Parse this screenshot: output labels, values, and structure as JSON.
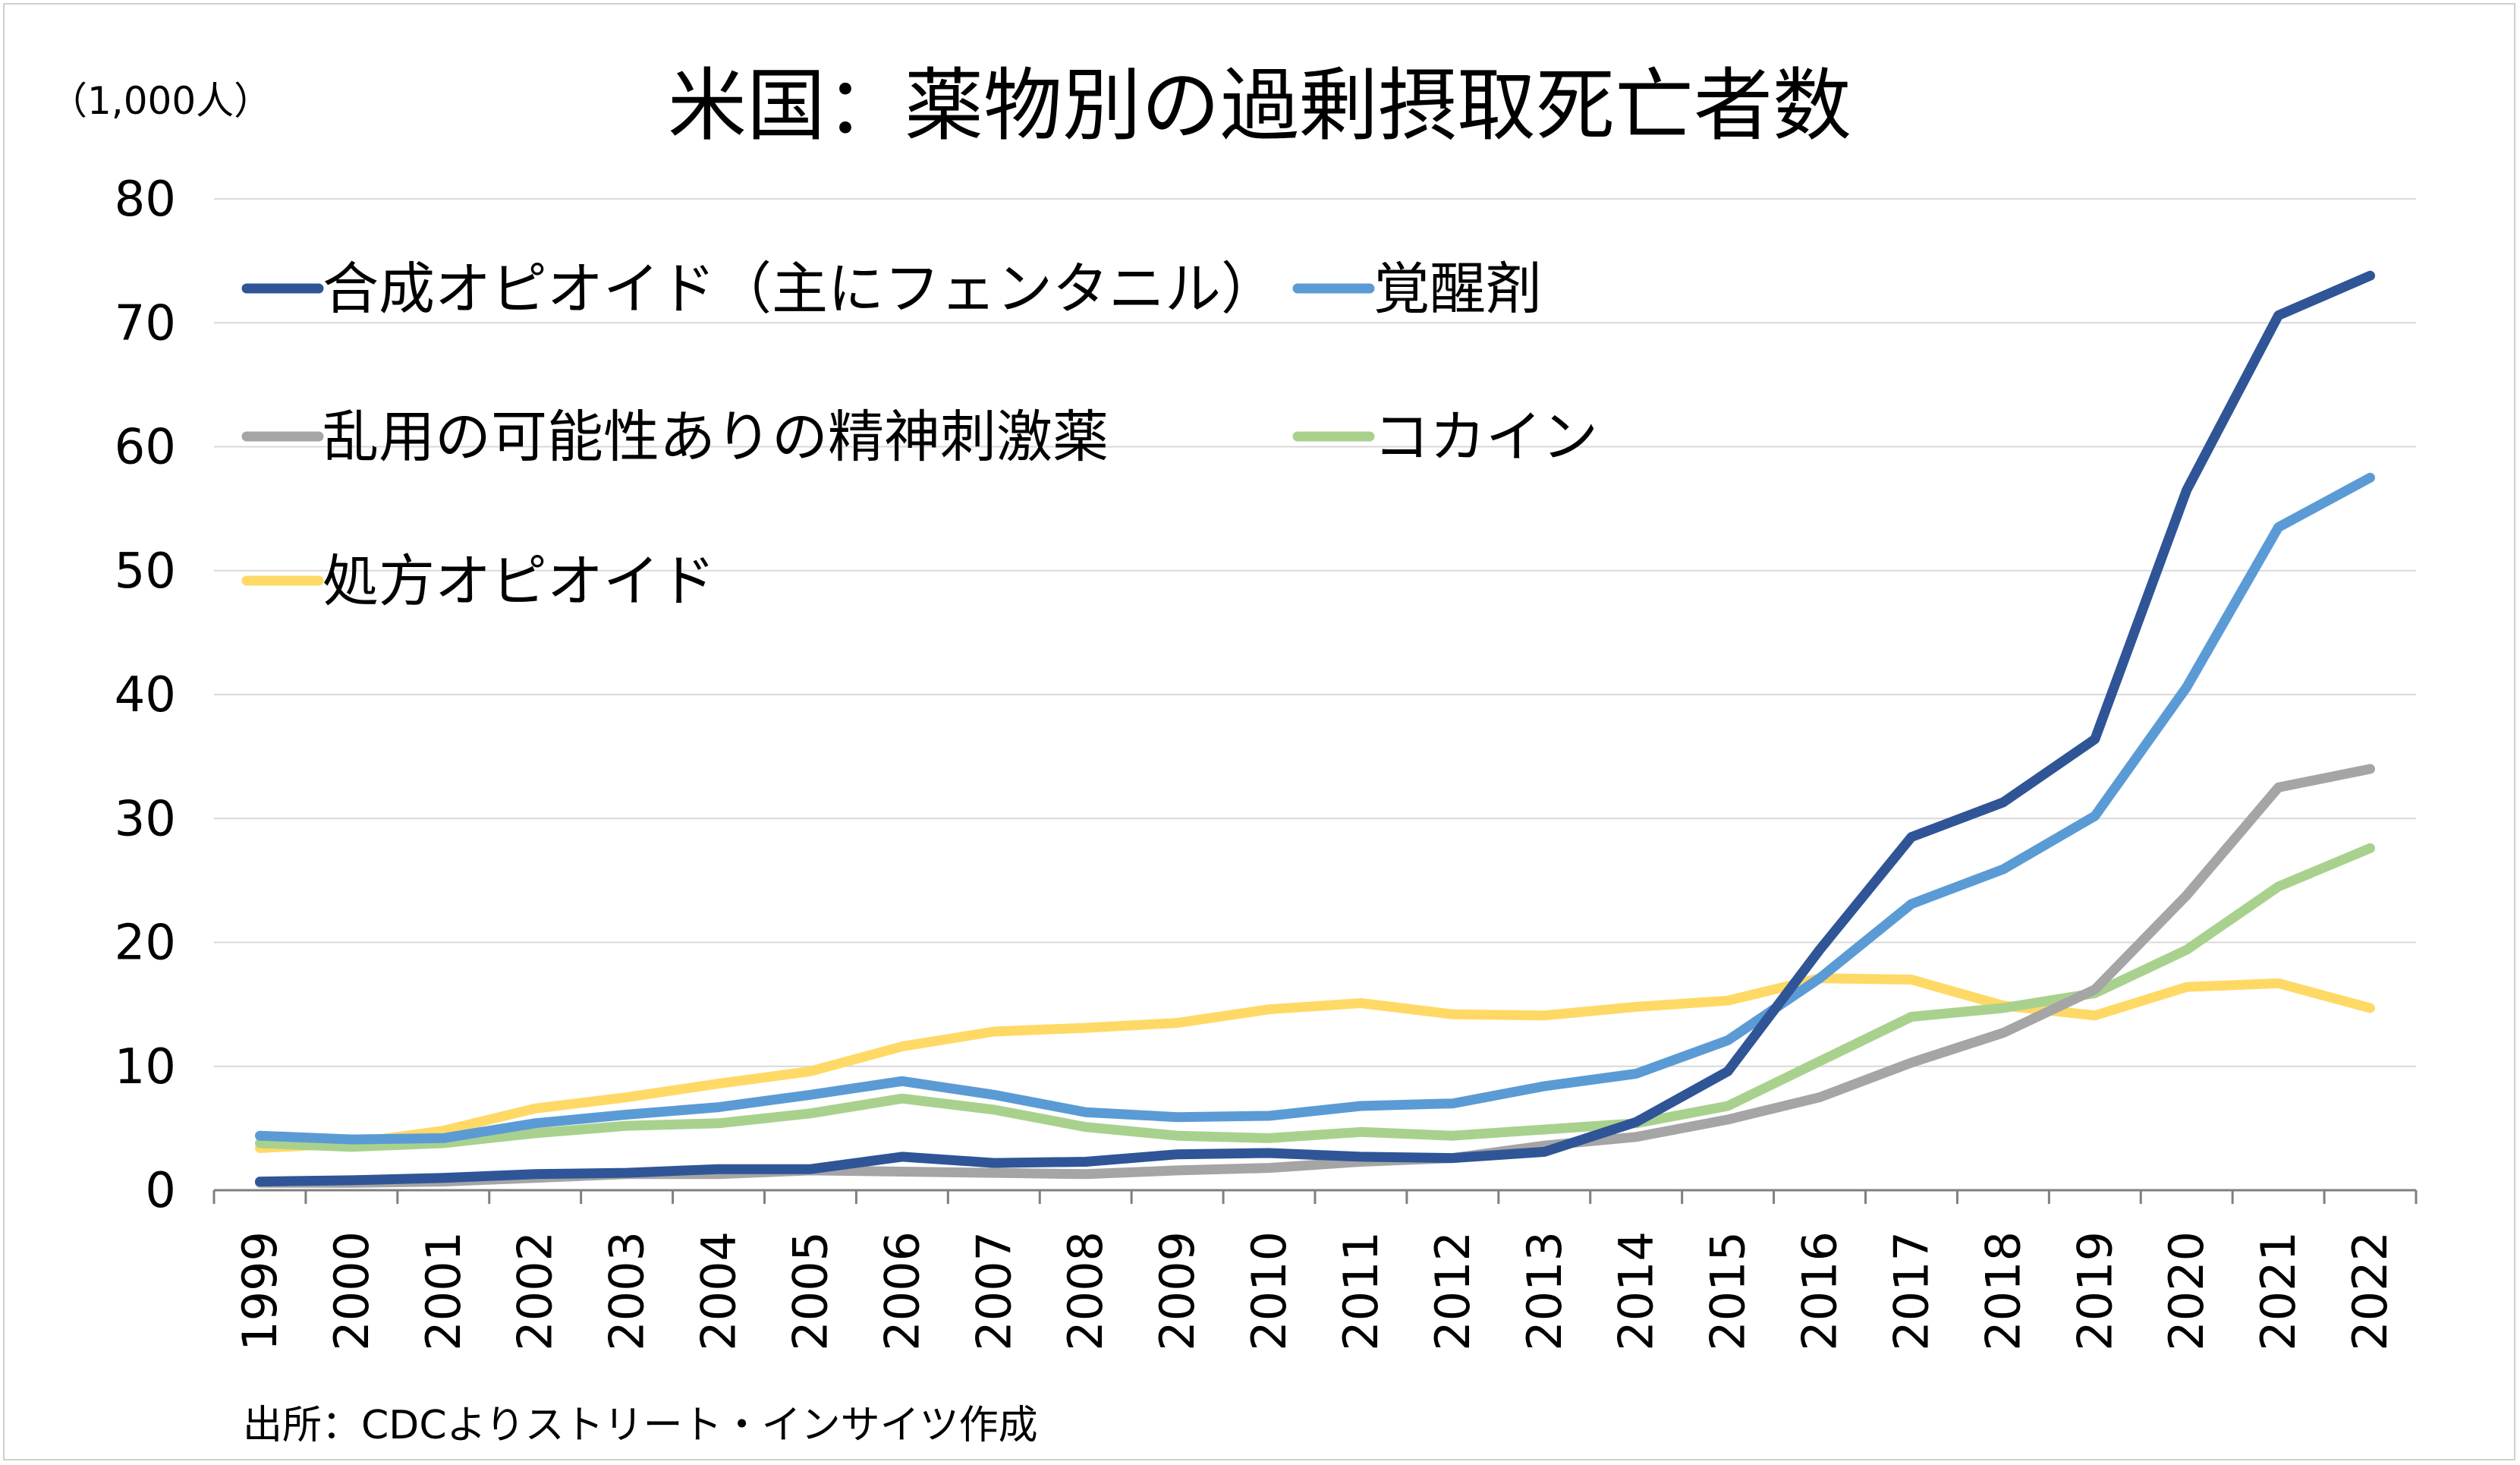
{
  "chart_data": {
    "type": "line",
    "title": "米国：薬物別の過剰摂取死亡者数",
    "unit_label": "（1,000人）",
    "source": "出所：CDCよりストリート・インサイツ作成",
    "x": [
      "1999",
      "2000",
      "2001",
      "2002",
      "2003",
      "2004",
      "2005",
      "2006",
      "2007",
      "2008",
      "2009",
      "2010",
      "2011",
      "2012",
      "2013",
      "2014",
      "2015",
      "2016",
      "2017",
      "2018",
      "2019",
      "2020",
      "2021",
      "2022"
    ],
    "ylim": [
      0,
      80
    ],
    "yticks": [
      "0",
      "10",
      "20",
      "30",
      "40",
      "50",
      "60",
      "70",
      "80"
    ],
    "grid": true,
    "legend_position": "top-left",
    "series": [
      {
        "name": "合成オピオイド（主にフェンタニル）",
        "color": "#2f5597",
        "values": [
          0.7,
          0.8,
          1.0,
          1.3,
          1.4,
          1.7,
          1.7,
          2.7,
          2.2,
          2.3,
          2.9,
          3.0,
          2.7,
          2.6,
          3.1,
          5.5,
          9.6,
          19.4,
          28.5,
          31.3,
          36.4,
          56.5,
          70.6,
          73.8
        ]
      },
      {
        "name": "覚醒剤",
        "color": "#5b9bd5",
        "values": [
          4.4,
          4.1,
          4.2,
          5.4,
          6.1,
          6.7,
          7.7,
          8.8,
          7.7,
          6.3,
          5.9,
          6.0,
          6.8,
          7.0,
          8.4,
          9.4,
          12.1,
          17.1,
          23.1,
          25.9,
          30.2,
          40.6,
          53.5,
          57.5
        ]
      },
      {
        "name": "乱用の可能性ありの精神刺激薬",
        "color": "#a5a5a5",
        "values": [
          0.6,
          0.6,
          0.7,
          1.0,
          1.3,
          1.3,
          1.6,
          1.5,
          1.4,
          1.3,
          1.6,
          1.8,
          2.3,
          2.6,
          3.6,
          4.3,
          5.7,
          7.5,
          10.3,
          12.7,
          16.2,
          23.8,
          32.5,
          34.0
        ]
      },
      {
        "name": "コカイン",
        "color": "#a9d18e",
        "values": [
          3.8,
          3.5,
          3.8,
          4.6,
          5.2,
          5.4,
          6.2,
          7.4,
          6.5,
          5.1,
          4.4,
          4.2,
          4.7,
          4.4,
          4.9,
          5.4,
          6.8,
          10.4,
          14.0,
          14.7,
          15.9,
          19.4,
          24.5,
          27.6
        ]
      },
      {
        "name": "処方オピオイド",
        "color": "#ffd966",
        "values": [
          3.4,
          3.8,
          4.8,
          6.6,
          7.5,
          8.6,
          9.6,
          11.6,
          12.8,
          13.1,
          13.5,
          14.6,
          15.1,
          14.2,
          14.1,
          14.8,
          15.3,
          17.1,
          17.0,
          14.9,
          14.1,
          16.4,
          16.7,
          14.7
        ]
      }
    ]
  }
}
